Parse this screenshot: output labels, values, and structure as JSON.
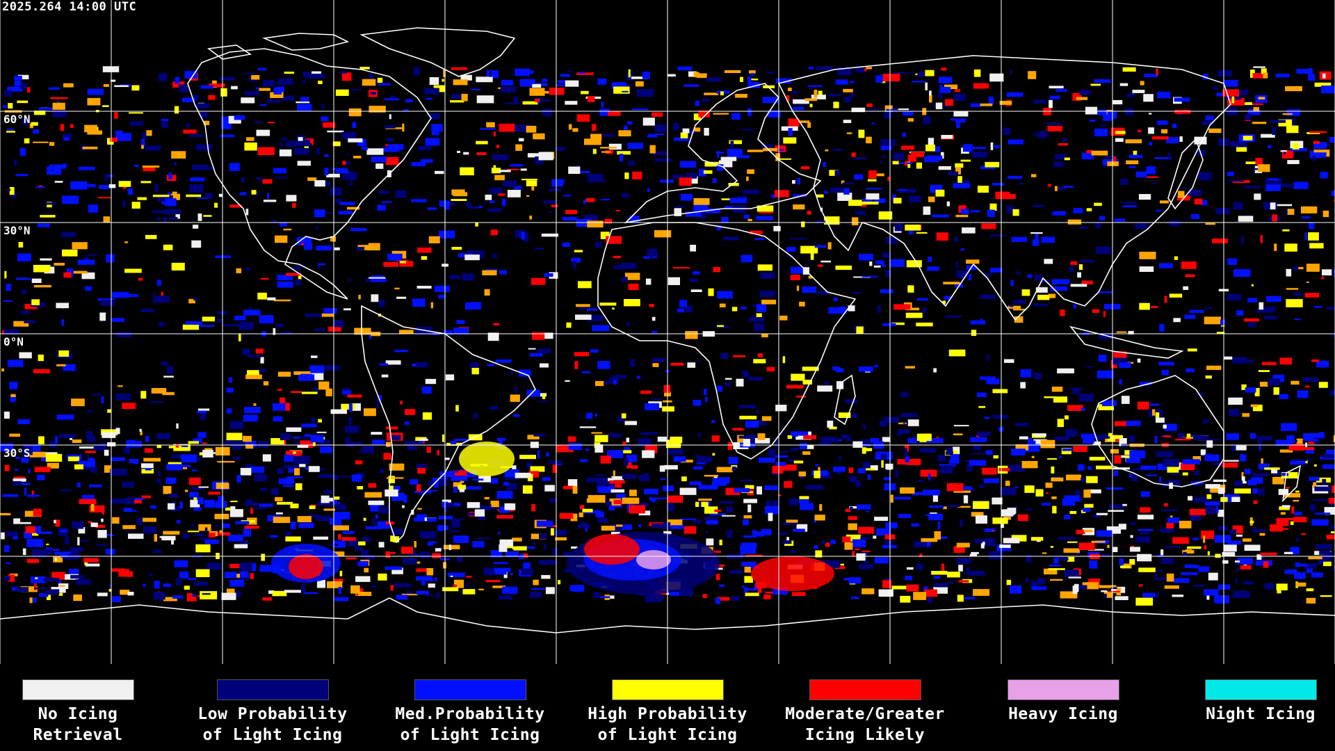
{
  "header": {
    "timestamp": "2025.264 14:00 UTC"
  },
  "latitude_labels": [
    "60°N",
    "30°N",
    "0°N",
    "30°S"
  ],
  "legend": [
    {
      "label": "No Icing\nRetrieval",
      "color": "#f0f0f0"
    },
    {
      "label": "Low Probability\nof Light Icing",
      "color": "#000078"
    },
    {
      "label": "Med.Probability\nof Light Icing",
      "color": "#0010ff"
    },
    {
      "label": "High Probability\nof Light Icing",
      "color": "#ffff00"
    },
    {
      "label": "Moderate/Greater\nIcing Likely",
      "color": "#ff0000"
    },
    {
      "label": "Heavy Icing",
      "color": "#e8a0e8"
    },
    {
      "label": "Night Icing",
      "color": "#00e8e8"
    }
  ]
}
